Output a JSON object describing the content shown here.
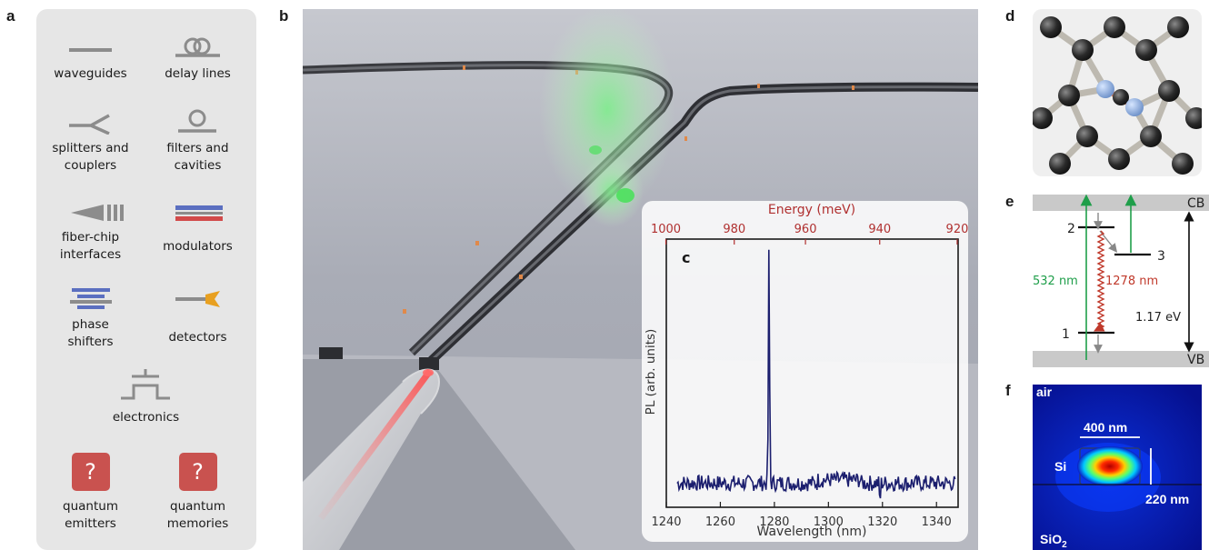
{
  "panel_labels": {
    "a": "a",
    "b": "b",
    "c": "c",
    "d": "d",
    "e": "e",
    "f": "f"
  },
  "components": [
    {
      "label": "waveguides",
      "icon": "waveguide-icon"
    },
    {
      "label": "delay lines",
      "icon": "delay-line-icon"
    },
    {
      "label": "splitters and\ncouplers",
      "icon": "splitter-icon"
    },
    {
      "label": "filters and\ncavities",
      "icon": "ring-filter-icon"
    },
    {
      "label": "fiber-chip\ninterfaces",
      "icon": "grating-coupler-icon"
    },
    {
      "label": "modulators",
      "icon": "modulator-icon"
    },
    {
      "label": "phase\nshifters",
      "icon": "phase-shifter-icon"
    },
    {
      "label": "detectors",
      "icon": "detector-icon"
    },
    {
      "label": "electronics",
      "icon": "electronics-icon"
    },
    {
      "label": "quantum\nemitters",
      "icon": "question-mark-icon",
      "symbol": "?"
    },
    {
      "label": "quantum\nmemories",
      "icon": "question-mark-icon",
      "symbol": "?"
    }
  ],
  "colors": {
    "panel_bg": "#e6e6e6",
    "icon_gray": "#8c8c8c",
    "modulator_blue": "#5b6fc0",
    "modulator_red": "#d24a4a",
    "detector_orange": "#e8a020",
    "question_red": "#c9524f",
    "spectrum": "#1b1e6e",
    "energy_axis": "#b03030",
    "green": "#1f9e4a",
    "red": "#c0392b"
  },
  "chart_data": {
    "type": "line",
    "xlabel": "Wavelength (nm)",
    "ylabel": "PL  (arb. units)",
    "x2label": "Energy (meV)",
    "xlim": [
      1240,
      1348
    ],
    "xticks": [
      1240,
      1260,
      1280,
      1300,
      1320,
      1340
    ],
    "x2ticks": [
      1000,
      980,
      960,
      940,
      920
    ],
    "ylim": [
      0,
      1
    ],
    "peak": {
      "x": 1278,
      "y": 0.96
    },
    "baseline": 0.09,
    "grid": false
  },
  "level_diagram": {
    "cb": "CB",
    "vb": "VB",
    "level_1": "1",
    "level_2": "2",
    "level_3": "3",
    "pump": "532 nm",
    "emission": "1278 nm",
    "gap": "1.17 eV"
  },
  "mode_profile": {
    "top": "air",
    "core": "Si",
    "bottom": "SiO",
    "bottom_sub": "2",
    "width": "400 nm",
    "height": "220 nm"
  }
}
